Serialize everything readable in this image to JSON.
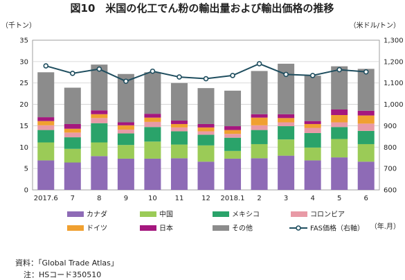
{
  "chart_data": {
    "type": "bar",
    "title": "図10　米国の化工でん粉の輸出量および輸出価格の推移",
    "left_unit": "（千トン）",
    "right_unit": "（米ドル/トン）",
    "x_unit": "（年.月）",
    "categories": [
      "2017.6",
      "7",
      "8",
      "9",
      "10",
      "11",
      "12",
      "2018.1",
      "2",
      "3",
      "4",
      "5",
      "6"
    ],
    "left_axis": {
      "min": 0,
      "max": 35,
      "ticks": [
        "0",
        "5",
        "10",
        "15",
        "20",
        "25",
        "30",
        "35"
      ]
    },
    "right_axis": {
      "min": 600,
      "max": 1300,
      "ticks": [
        "600",
        "700",
        "800",
        "900",
        "1,000",
        "1,100",
        "1,200",
        "1,300"
      ]
    },
    "grid": true,
    "legend_position": "bottom",
    "series": [
      {
        "name": "カナダ",
        "color": "#8e6bb6",
        "values": [
          6.9,
          6.4,
          7.9,
          7.3,
          7.3,
          7.4,
          6.6,
          7.3,
          7.4,
          8.0,
          6.9,
          7.6,
          6.6
        ]
      },
      {
        "name": "中国",
        "color": "#9bcb57",
        "values": [
          4.2,
          3.2,
          3.2,
          3.2,
          4.0,
          3.2,
          3.8,
          1.8,
          3.3,
          3.8,
          3.0,
          4.3,
          4.1
        ]
      },
      {
        "name": "メキシコ",
        "color": "#2aa36a",
        "values": [
          2.9,
          2.7,
          4.5,
          2.7,
          3.4,
          3.1,
          2.5,
          3.1,
          3.3,
          3.1,
          3.4,
          2.8,
          3.1
        ]
      },
      {
        "name": "コロンビア",
        "color": "#e89aa6",
        "values": [
          1.1,
          1.1,
          1.2,
          0.9,
          1.2,
          0.9,
          0.8,
          0.9,
          1.1,
          0.9,
          1.2,
          1.1,
          1.7
        ]
      },
      {
        "name": "ドイツ",
        "color": "#f0a030",
        "values": [
          1.0,
          0.9,
          0.9,
          1.0,
          1.0,
          0.8,
          0.9,
          0.9,
          1.8,
          1.0,
          0.9,
          1.7,
          1.9
        ]
      },
      {
        "name": "日本",
        "color": "#a5177e",
        "values": [
          0.9,
          1.1,
          0.9,
          0.7,
          0.9,
          0.8,
          0.8,
          0.9,
          0.8,
          0.9,
          0.7,
          1.3,
          1.1
        ]
      },
      {
        "name": "その他",
        "color": "#8c8c8c",
        "values": [
          10.5,
          8.5,
          10.7,
          11.3,
          9.7,
          8.8,
          8.4,
          8.3,
          10.1,
          11.8,
          10.6,
          10.1,
          9.8
        ]
      }
    ],
    "line_series": {
      "name": "FAS価格（右軸）",
      "axis": "right",
      "color": "#1f4e5f",
      "values": [
        1180,
        1145,
        1165,
        1108,
        1155,
        1128,
        1120,
        1135,
        1190,
        1140,
        1135,
        1162,
        1152
      ]
    }
  },
  "notes": {
    "source": "資料：「Global Trade Atlas」",
    "note": "注：HSコード350510"
  }
}
